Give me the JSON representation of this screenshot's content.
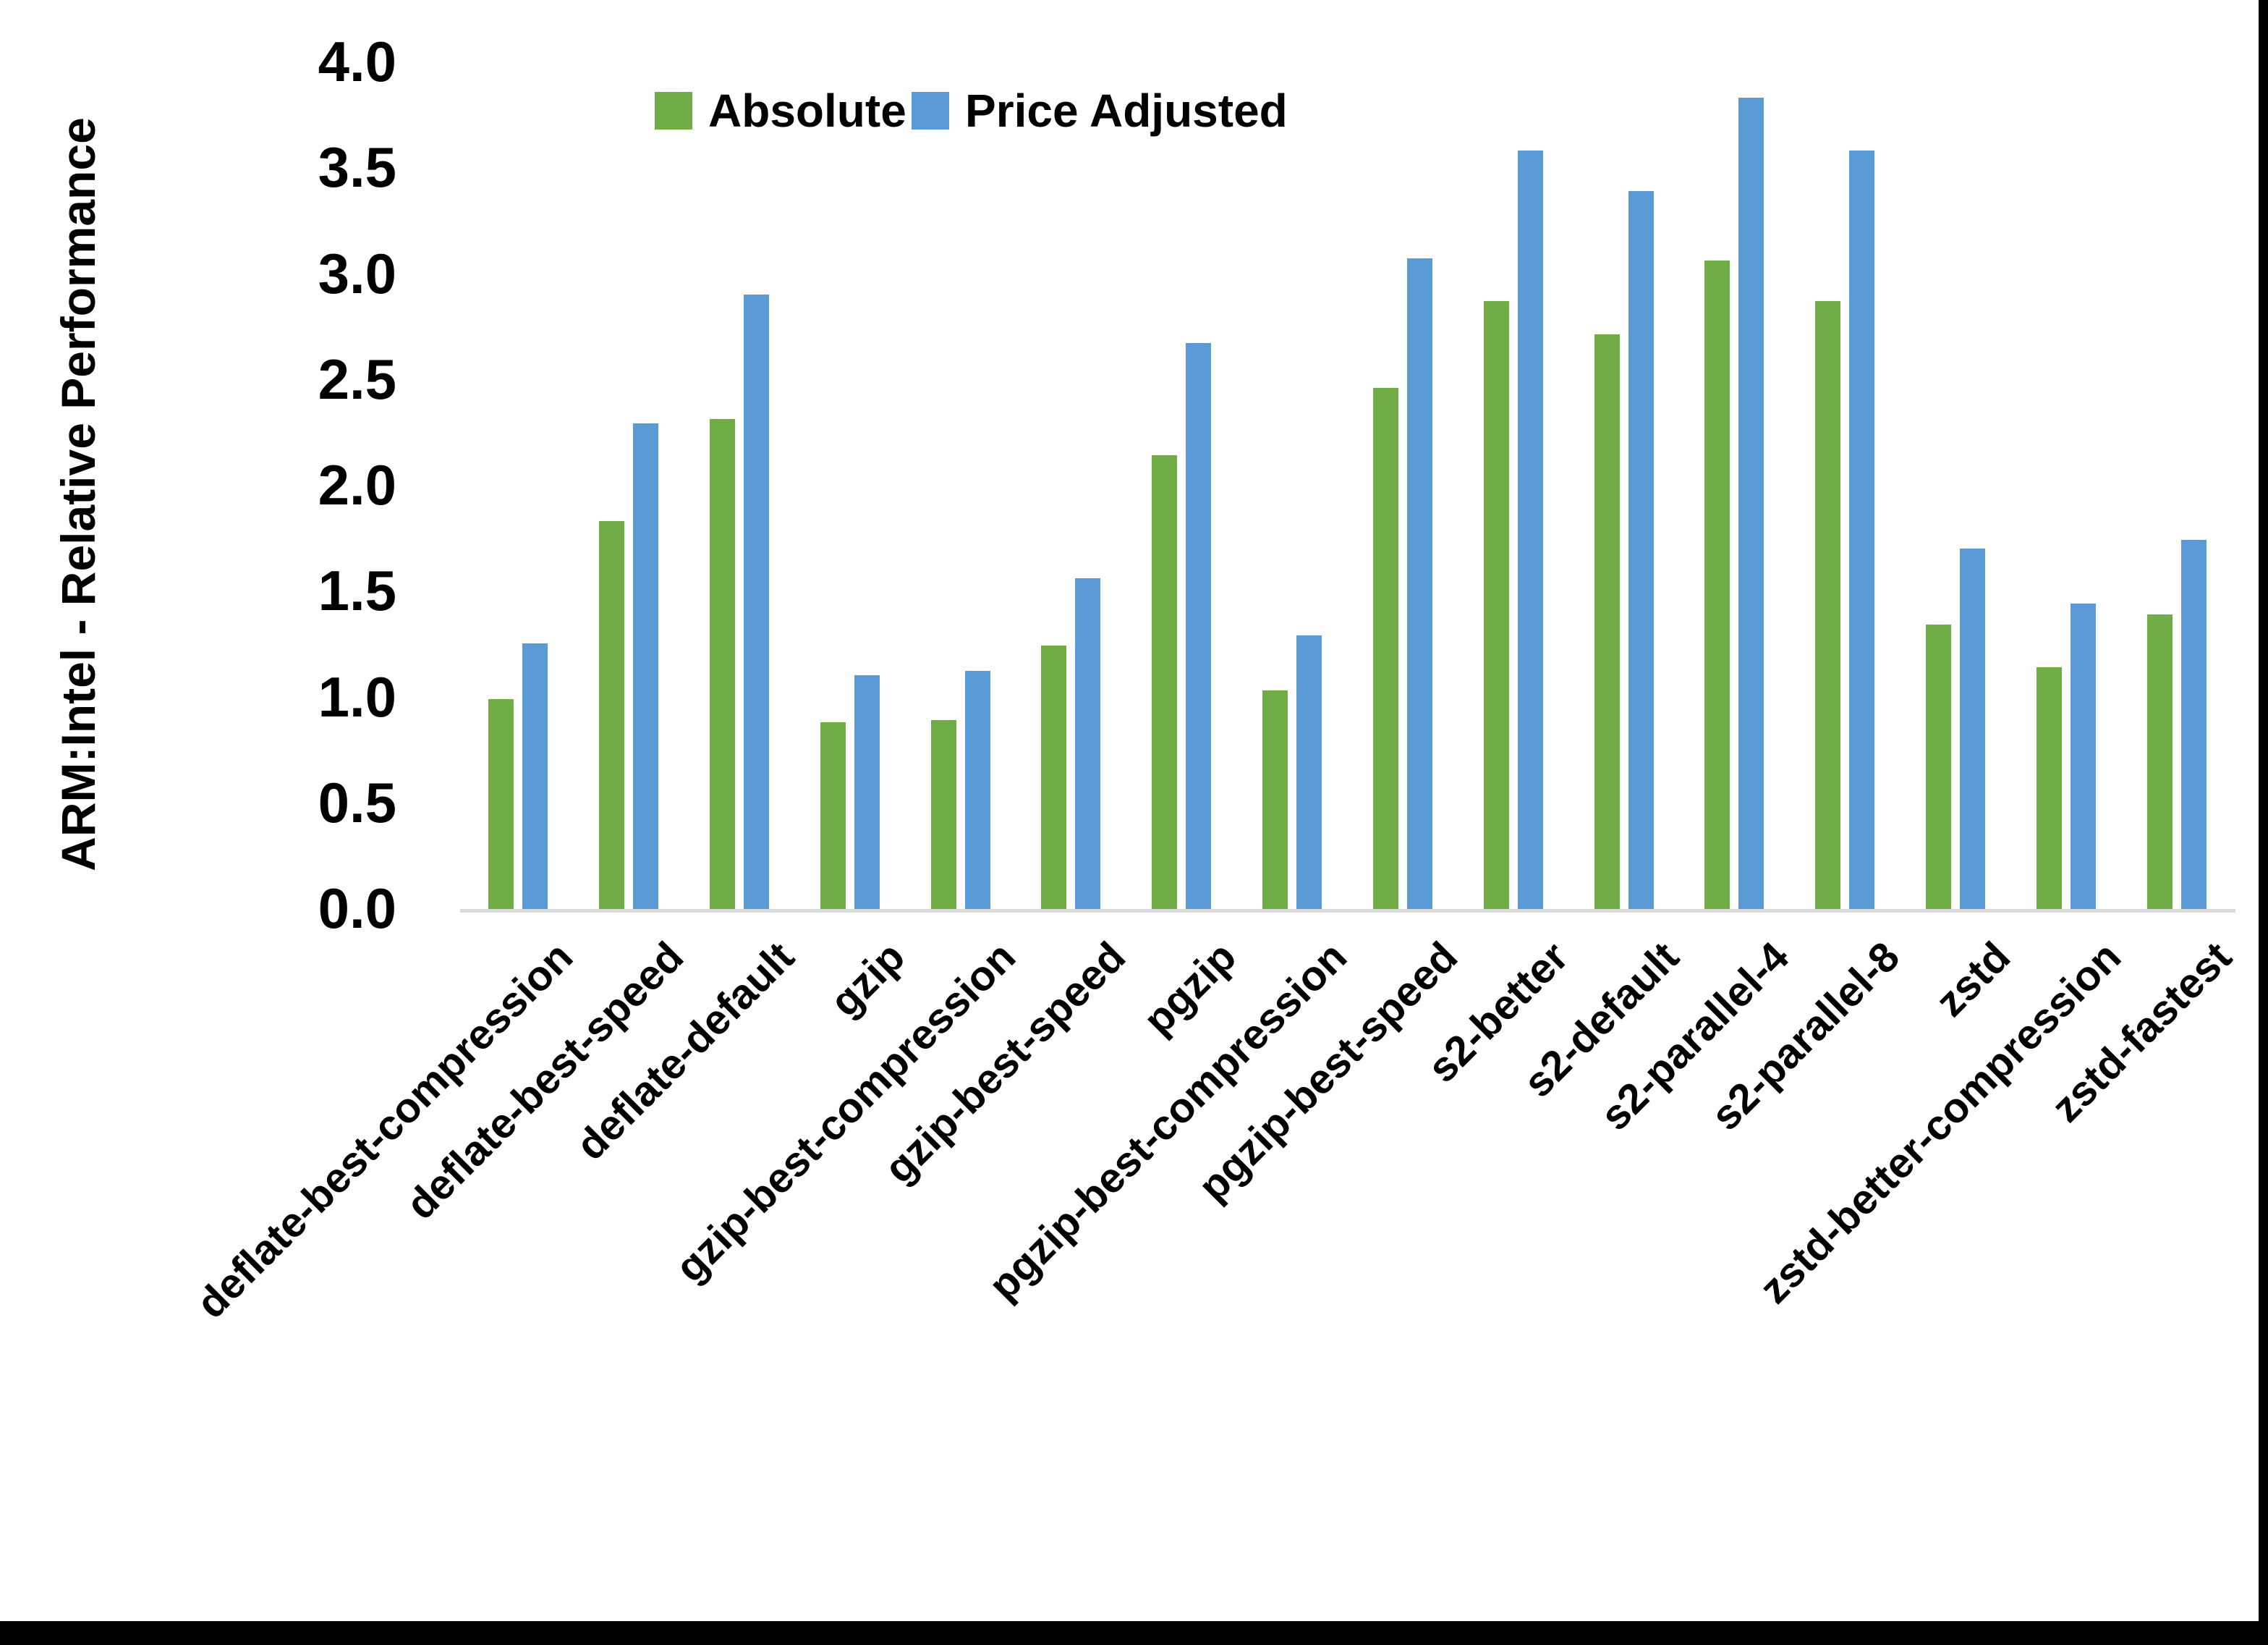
{
  "chart_data": {
    "type": "bar",
    "title": "",
    "xlabel": "",
    "ylabel": "ARM:Intel - Relative Performance",
    "ylim": [
      0.0,
      4.0
    ],
    "ytick_step": 0.5,
    "ytick_labels": [
      "0.0",
      "0.5",
      "1.0",
      "1.5",
      "2.0",
      "2.5",
      "3.0",
      "3.5",
      "4.0"
    ],
    "grid": false,
    "legend_position": "top-center",
    "categories": [
      "deflate-best-compression",
      "deflate-best-speed",
      "deflate-default",
      "gzip",
      "gzip-best-compression",
      "gzip-best-speed",
      "pgzip",
      "pgzip-best-compression",
      "pgzip-best-speed",
      "s2-better",
      "s2-default",
      "s2-parallel-4",
      "s2-parallel-8",
      "zstd",
      "zstd-better-compression",
      "zstd-fastest"
    ],
    "series": [
      {
        "name": "Absolute",
        "color": "#70AD47",
        "values": [
          1.0,
          1.84,
          2.32,
          0.89,
          0.9,
          1.25,
          2.15,
          1.04,
          2.47,
          2.88,
          2.72,
          3.07,
          2.88,
          1.35,
          1.15,
          1.4
        ]
      },
      {
        "name": "Price Adjusted",
        "color": "#5B9BD5",
        "values": [
          1.26,
          2.3,
          2.91,
          1.11,
          1.13,
          1.57,
          2.68,
          1.3,
          3.08,
          3.59,
          3.4,
          3.84,
          3.59,
          1.71,
          1.45,
          1.75
        ]
      }
    ]
  },
  "colors": {
    "axis_line": "#D9D9D9",
    "text": "#000000",
    "frame": "#000000"
  }
}
